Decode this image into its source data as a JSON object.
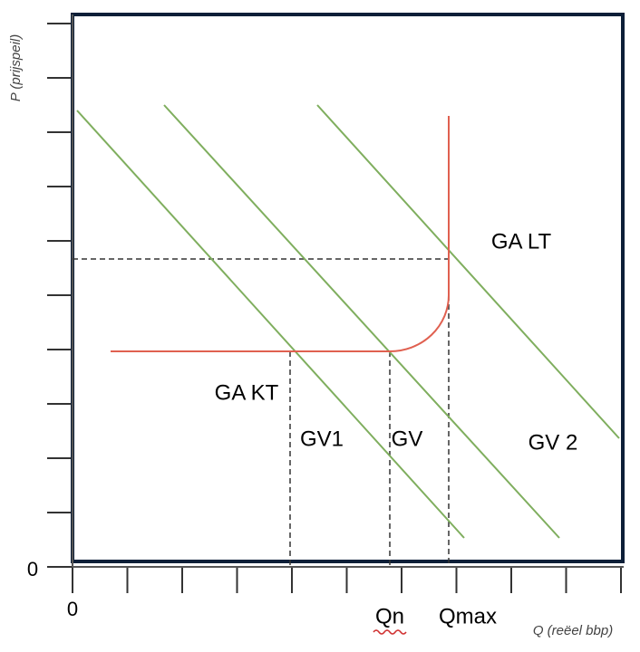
{
  "axes": {
    "y_title": "P (prijspeil)",
    "x_title": "Q (reëel bbp)",
    "y_origin": "0",
    "x_origin": "0"
  },
  "curves": {
    "ga_lt": "GA LT",
    "ga_kt": "GA KT",
    "gv1": "GV1",
    "gv": "GV",
    "gv2": "GV 2"
  },
  "points": {
    "qn": "Qn",
    "qmax": "Qmax"
  }
}
